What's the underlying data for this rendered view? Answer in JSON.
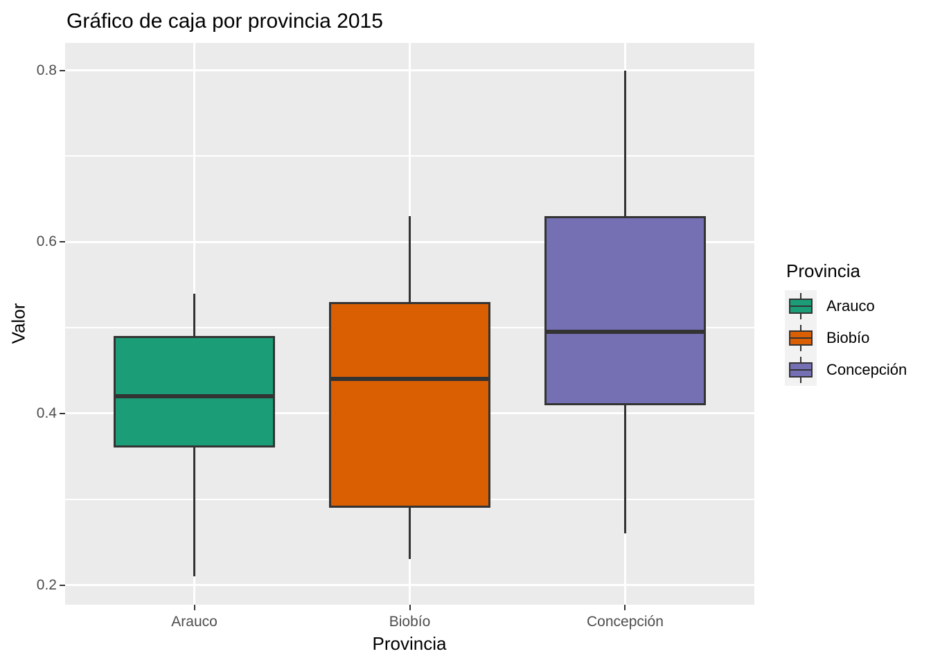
{
  "title": "Gráfico de caja por provincia 2015",
  "axes": {
    "x": {
      "label": "Provincia",
      "categories": [
        "Arauco",
        "Biobío",
        "Concepción"
      ]
    },
    "y": {
      "label": "Valor",
      "ticks": [
        {
          "label": "0.2",
          "value": 0.2
        },
        {
          "label": "0.4",
          "value": 0.4
        },
        {
          "label": "0.6",
          "value": 0.6
        },
        {
          "label": "0.8",
          "value": 0.8
        }
      ],
      "minor_ticks": [
        0.3,
        0.5,
        0.7
      ]
    }
  },
  "legend": {
    "title": "Provincia",
    "entries": [
      {
        "label": "Arauco",
        "color": "#1B9E77"
      },
      {
        "label": "Biobío",
        "color": "#D95F02"
      },
      {
        "label": "Concepción",
        "color": "#7570B3"
      }
    ]
  },
  "chart_data": {
    "type": "boxplot",
    "title": "Gráfico de caja por provincia 2015",
    "xlabel": "Provincia",
    "ylabel": "Valor",
    "categories": [
      "Arauco",
      "Biobío",
      "Concepción"
    ],
    "ylim": [
      0.177,
      0.832
    ],
    "y_major_gridlines": [
      0.2,
      0.4,
      0.6,
      0.8
    ],
    "y_minor_gridlines": [
      0.3,
      0.5,
      0.7
    ],
    "grid": "white-on-grey",
    "legend_position": "right",
    "series": [
      {
        "name": "Arauco",
        "color": "#1B9E77",
        "whisker_low": 0.21,
        "q1": 0.36,
        "median": 0.42,
        "q3": 0.49,
        "whisker_high": 0.54
      },
      {
        "name": "Biobío",
        "color": "#D95F02",
        "whisker_low": 0.23,
        "q1": 0.29,
        "median": 0.44,
        "q3": 0.53,
        "whisker_high": 0.63
      },
      {
        "name": "Concepción",
        "color": "#7570B3",
        "whisker_low": 0.26,
        "q1": 0.41,
        "median": 0.495,
        "q3": 0.63,
        "whisker_high": 0.8
      }
    ],
    "colors": {
      "panel_bg": "#EBEBEB",
      "gridline": "#FFFFFF",
      "box_border": "#333333",
      "axis_text": "#4D4D4D",
      "legend_key_bg": "#F2F2F2"
    }
  }
}
